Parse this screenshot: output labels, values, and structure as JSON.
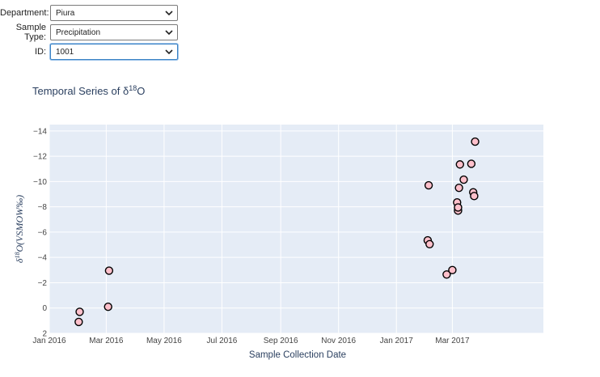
{
  "filters": [
    {
      "label": "Department:",
      "value": "Piura",
      "focused": false
    },
    {
      "label": "Sample Type:",
      "value": "Precipitation",
      "focused": false
    },
    {
      "label": "ID:",
      "value": "1001",
      "focused": true
    }
  ],
  "chart_data": {
    "type": "scatter",
    "title_prefix": "Temporal Series of δ",
    "title_sup": "18",
    "title_suffix": "O",
    "xlabel": "Sample Collection Date",
    "ylabel_prefix": "δ",
    "ylabel_sup": "18",
    "ylabel_suffix": "O(VSMOW‰)",
    "y_reversed": true,
    "ylim": [
      2,
      -14.5
    ],
    "xlim": [
      "2016-01-01",
      "2017-06-05"
    ],
    "x_ticks": [
      {
        "date": "2016-01-01",
        "label": "Jan 2016"
      },
      {
        "date": "2016-03-01",
        "label": "Mar 2016"
      },
      {
        "date": "2016-05-01",
        "label": "May 2016"
      },
      {
        "date": "2016-07-01",
        "label": "Jul 2016"
      },
      {
        "date": "2016-09-01",
        "label": "Sep 2016"
      },
      {
        "date": "2016-11-01",
        "label": "Nov 2016"
      },
      {
        "date": "2017-01-01",
        "label": "Jan 2017"
      },
      {
        "date": "2017-03-01",
        "label": "Mar 2017"
      }
    ],
    "y_ticks": [
      -14,
      -12,
      -10,
      -8,
      -6,
      -4,
      -2,
      0,
      2
    ],
    "grid": true,
    "marker_color": "#ffc0cb",
    "marker_edge": "#000000",
    "plot_bg": "#e5ecf6",
    "points": [
      {
        "x": "2016-02-01",
        "y": 1.1
      },
      {
        "x": "2016-02-02",
        "y": 0.3
      },
      {
        "x": "2016-03-03",
        "y": -0.1
      },
      {
        "x": "2016-03-04",
        "y": -2.95
      },
      {
        "x": "2017-02-03",
        "y": -5.35
      },
      {
        "x": "2017-02-04",
        "y": -9.7
      },
      {
        "x": "2017-02-05",
        "y": -5.05
      },
      {
        "x": "2017-02-23",
        "y": -2.65
      },
      {
        "x": "2017-03-01",
        "y": -3.0
      },
      {
        "x": "2017-03-06",
        "y": -8.35
      },
      {
        "x": "2017-03-07",
        "y": -7.7
      },
      {
        "x": "2017-03-07",
        "y": -7.95
      },
      {
        "x": "2017-03-08",
        "y": -9.5
      },
      {
        "x": "2017-03-09",
        "y": -11.35
      },
      {
        "x": "2017-03-13",
        "y": -10.15
      },
      {
        "x": "2017-03-21",
        "y": -11.4
      },
      {
        "x": "2017-03-23",
        "y": -9.15
      },
      {
        "x": "2017-03-24",
        "y": -8.85
      },
      {
        "x": "2017-03-25",
        "y": -13.15
      }
    ]
  }
}
